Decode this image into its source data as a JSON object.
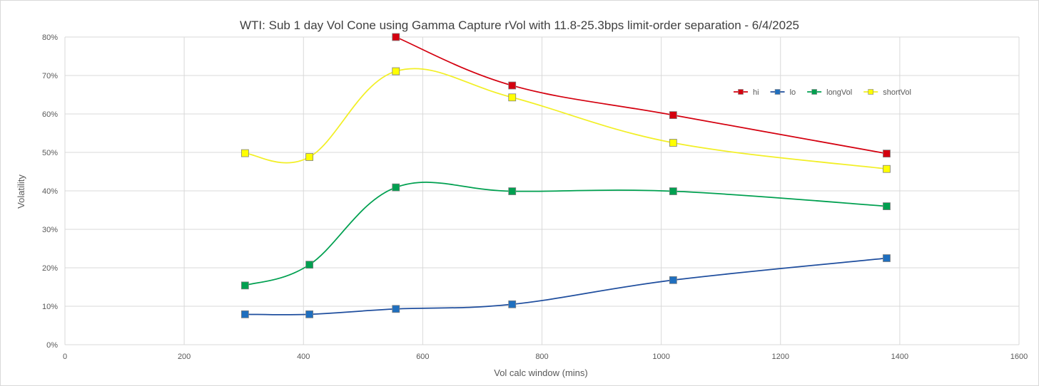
{
  "chart_data": {
    "type": "line",
    "title": "WTI: Sub 1 day Vol Cone using Gamma Capture rVol with 11.8-25.3bps limit-order separation - 6/4/2025",
    "xlabel": "Vol calc window (mins)",
    "ylabel": "Volatility",
    "xlim": [
      0,
      1600
    ],
    "ylim": [
      0,
      0.8
    ],
    "x_ticks": [
      "0",
      "200",
      "400",
      "600",
      "800",
      "1000",
      "1200",
      "1400",
      "1600"
    ],
    "y_ticks": [
      "0%",
      "10%",
      "20%",
      "30%",
      "40%",
      "50%",
      "60%",
      "70%",
      "80%"
    ],
    "grid": true,
    "smooth": true,
    "legend_position": "top-right",
    "series": [
      {
        "name": "hi",
        "color": "#d4000f",
        "points": [
          [
            555,
            0.8
          ],
          [
            750,
            0.674
          ],
          [
            1020,
            0.597
          ],
          [
            1378,
            0.497
          ]
        ]
      },
      {
        "name": "lo",
        "color": "#1f4e9e",
        "marker_color": "#1f6fbf",
        "points": [
          [
            302,
            0.079
          ],
          [
            410,
            0.079
          ],
          [
            555,
            0.093
          ],
          [
            750,
            0.105
          ],
          [
            1020,
            0.168
          ],
          [
            1378,
            0.225
          ]
        ]
      },
      {
        "name": "longVol",
        "color": "#00a050",
        "marker_color": "#00a050",
        "points": [
          [
            302,
            0.154
          ],
          [
            410,
            0.208
          ],
          [
            555,
            0.409
          ],
          [
            750,
            0.399
          ],
          [
            1020,
            0.399
          ],
          [
            1378,
            0.36
          ]
        ]
      },
      {
        "name": "shortVol",
        "color": "#f2ef26",
        "marker_color": "#ffff00",
        "points": [
          [
            302,
            0.498
          ],
          [
            410,
            0.488
          ],
          [
            555,
            0.711
          ],
          [
            750,
            0.643
          ],
          [
            1020,
            0.525
          ],
          [
            1378,
            0.457
          ]
        ]
      }
    ]
  }
}
